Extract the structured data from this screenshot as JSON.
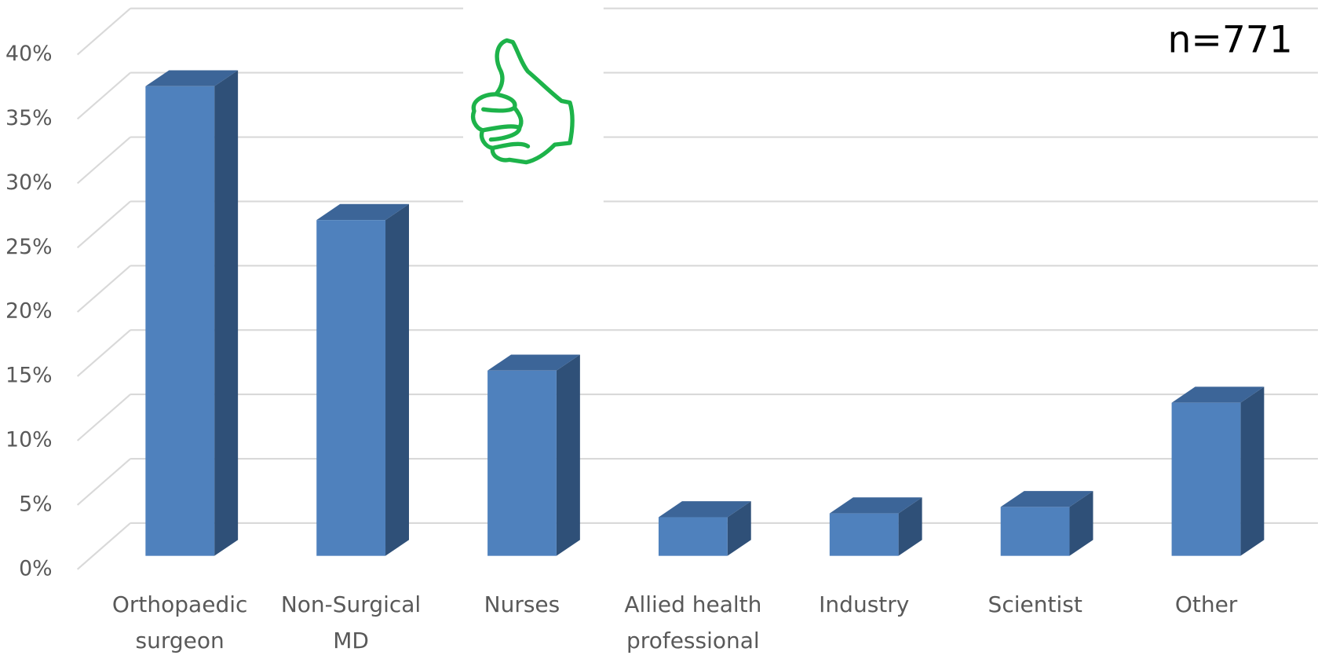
{
  "chart_data": {
    "type": "bar3d",
    "annotation": "n=771",
    "categories": [
      "Orthopaedic\nsurgeon",
      "Non-Surgical\nMD",
      "Nurses",
      "Allied health\nprofessional",
      "Industry",
      "Scientist",
      "Other"
    ],
    "values": [
      36.5,
      26.1,
      14.4,
      3.0,
      3.3,
      3.8,
      11.9
    ],
    "color": "#4f81bd",
    "side_color": "#2f5078",
    "top_color": "#3c6598",
    "ylim": [
      0,
      40
    ],
    "yticks": [
      {
        "value": 0,
        "label": "0%"
      },
      {
        "value": 5,
        "label": "5%"
      },
      {
        "value": 10,
        "label": "10%"
      },
      {
        "value": 15,
        "label": "15%"
      },
      {
        "value": 20,
        "label": "20%"
      },
      {
        "value": 25,
        "label": "25%"
      },
      {
        "value": 30,
        "label": "30%"
      },
      {
        "value": 35,
        "label": "35%"
      },
      {
        "value": 40,
        "label": "40%"
      }
    ],
    "grid": true
  }
}
